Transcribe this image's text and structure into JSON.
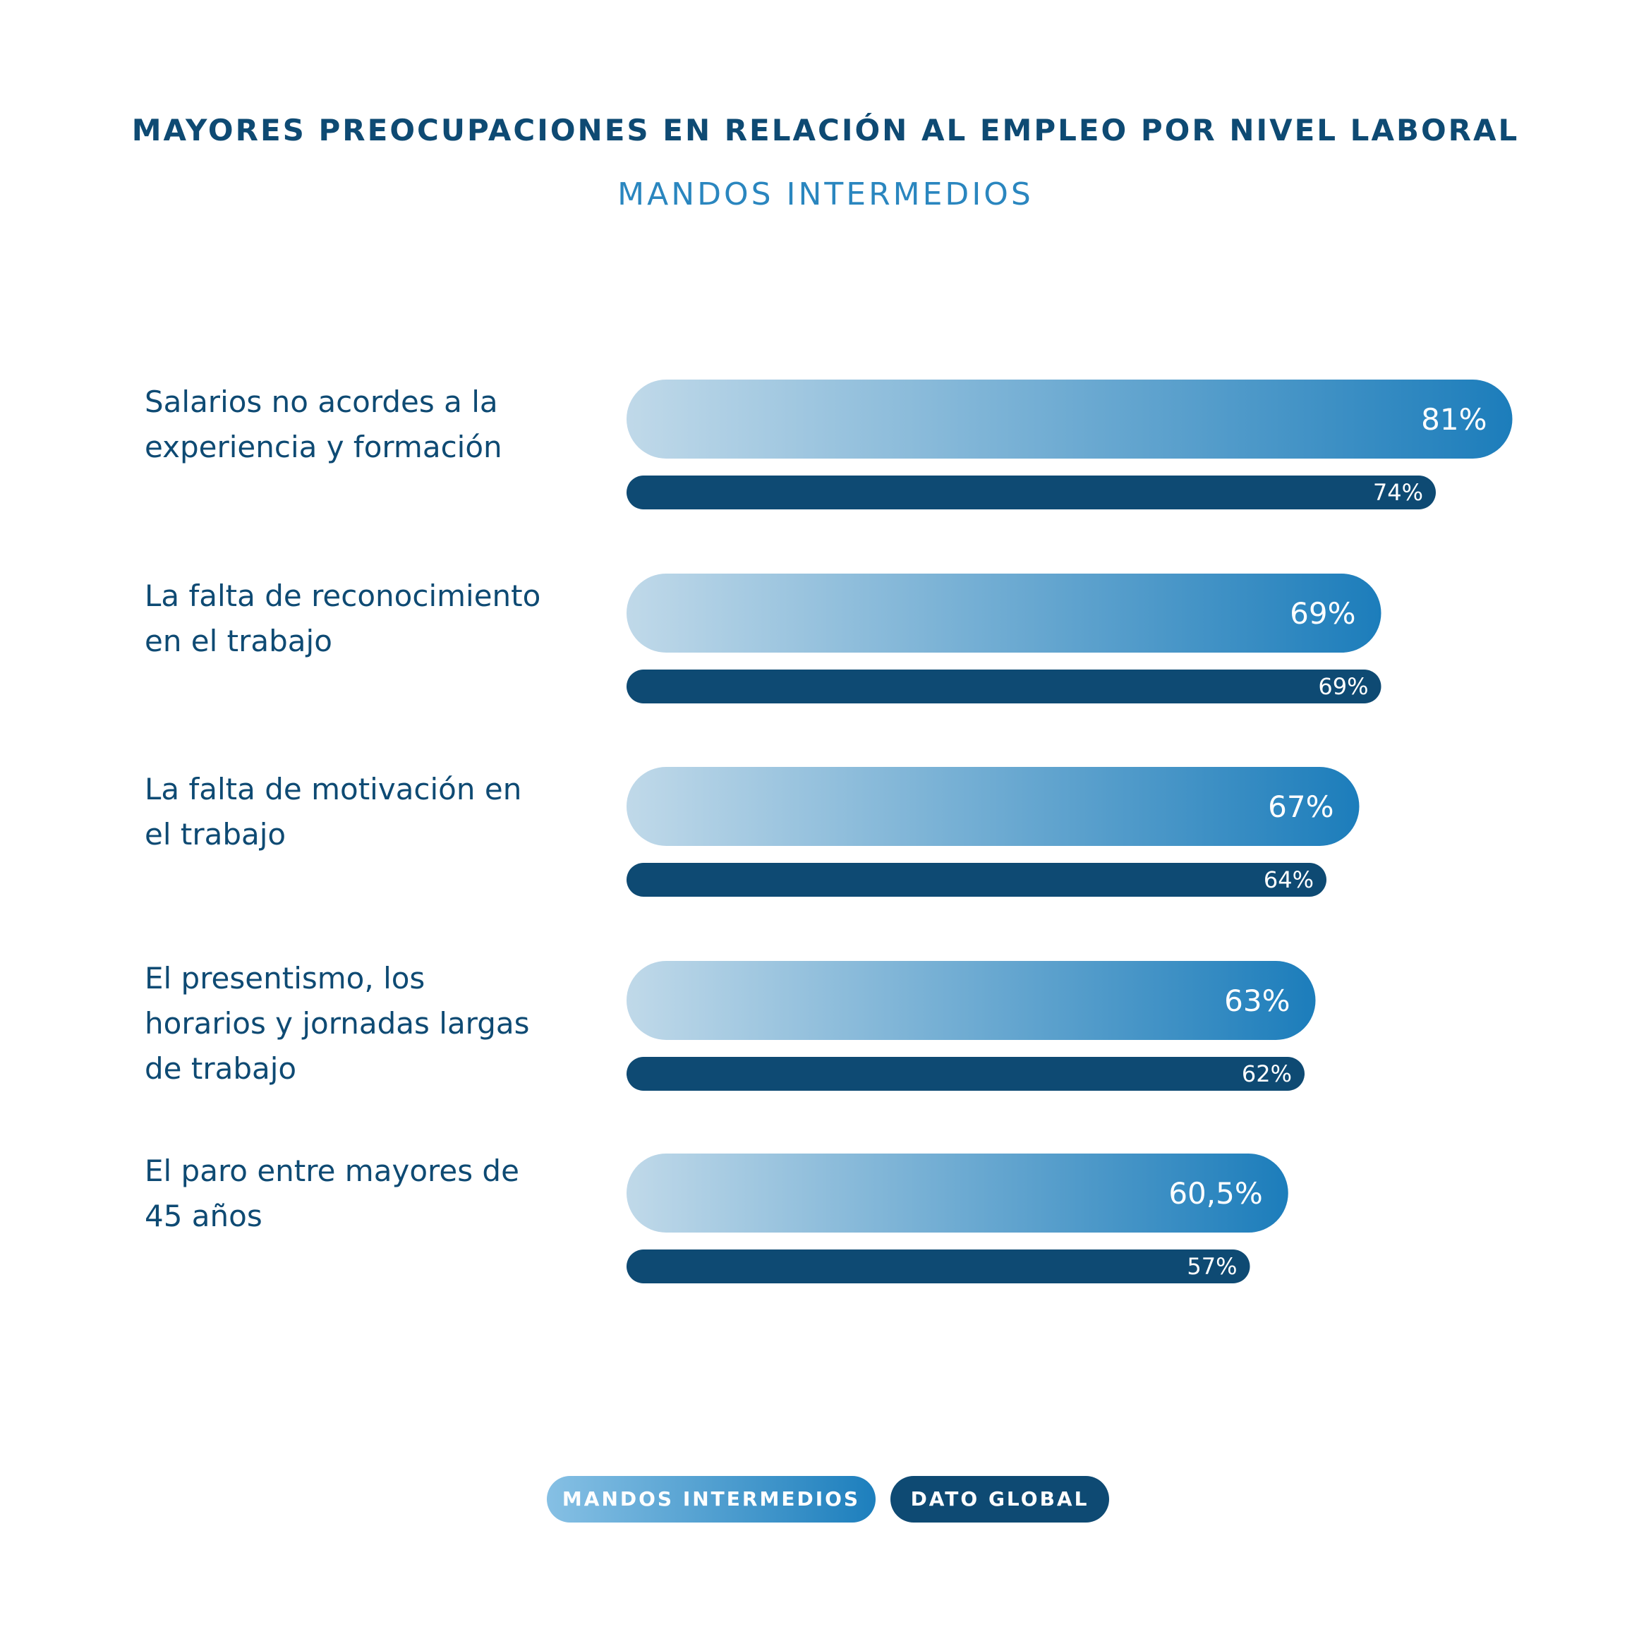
{
  "chart_data": {
    "type": "bar",
    "orientation": "horizontal",
    "title": "MAYORES PREOCUPACIONES EN RELACIÓN AL EMPLEO POR NIVEL LABORAL",
    "subtitle": "MANDOS INTERMEDIOS",
    "categories": [
      "Salarios no acordes a la\nexperiencia y formación",
      "La falta de reconocimiento\nen el trabajo",
      "La falta de motivación en\nel trabajo",
      "El presentismo, los\nhorarios y jornadas largas\nde trabajo",
      "El paro entre mayores de\n45 años"
    ],
    "series": [
      {
        "name": "MANDOS INTERMEDIOS",
        "values": [
          81,
          69,
          67,
          63,
          60.5
        ],
        "labels": [
          "81%",
          "69%",
          "67%",
          "63%",
          "60,5%"
        ],
        "color_start": "#c0d9e9",
        "color_end": "#1c7dbb"
      },
      {
        "name": "DATO GLOBAL",
        "values": [
          74,
          69,
          64,
          62,
          57
        ],
        "labels": [
          "74%",
          "69%",
          "64%",
          "62%",
          "57%"
        ],
        "color": "#0e4a73"
      }
    ],
    "xlim": [
      0,
      100
    ],
    "grid": false,
    "legend_position": "bottom-center"
  },
  "colors": {
    "title": "#0e4a73",
    "subtitle": "#2a86bf",
    "text": "#0e4a73"
  }
}
